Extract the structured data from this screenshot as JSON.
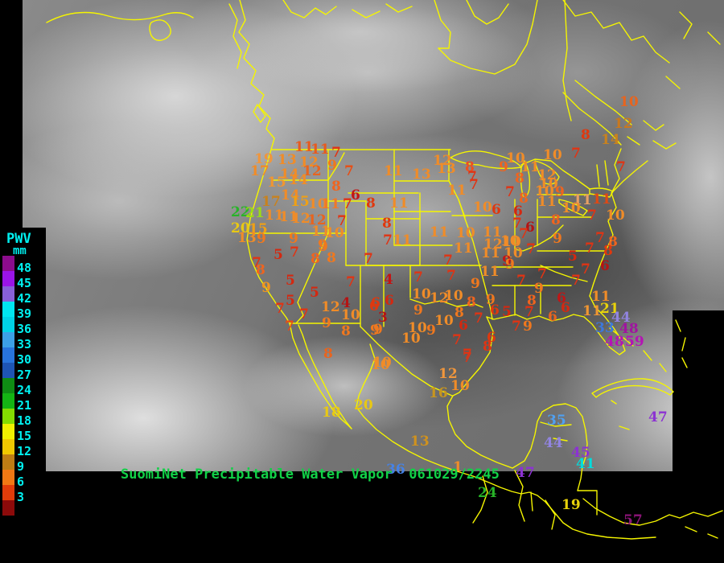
{
  "caption": {
    "text": "SuomiNet Precipitable Water Vapor  061029/2245"
  },
  "legend": {
    "title": "PWV",
    "unit": "mm",
    "label_color": "#00f0f0",
    "values": [
      "48",
      "45",
      "42",
      "39",
      "36",
      "33",
      "30",
      "27",
      "24",
      "21",
      "18",
      "15",
      "12",
      "9",
      "6",
      "3"
    ],
    "colors": [
      "#8c0c8c",
      "#9a14e6",
      "#8760d8",
      "#00e6f0",
      "#00d2e6",
      "#3ca0e6",
      "#2874dc",
      "#1e55b4",
      "#0f8c14",
      "#14b414",
      "#84dc00",
      "#f0f000",
      "#f0c800",
      "#be7d14",
      "#f07814",
      "#e03c0a",
      "#8c0a0a"
    ]
  },
  "map": {
    "outline_color": "#f5f500",
    "background": "satellite-infrared-grayscale"
  },
  "stations": [
    [
      "11",
      366,
      176,
      "#e85a1e"
    ],
    [
      "11",
      386,
      179,
      "#e85a1e"
    ],
    [
      "7",
      412,
      183,
      "#e03414"
    ],
    [
      "19",
      316,
      191,
      "#f0963c"
    ],
    [
      "13",
      345,
      192,
      "#f08c28"
    ],
    [
      "12",
      372,
      195,
      "#f08c28"
    ],
    [
      "9",
      407,
      199,
      "#f0781e"
    ],
    [
      "17",
      311,
      206,
      "#f08c28"
    ],
    [
      "12",
      376,
      206,
      "#e8641e"
    ],
    [
      "14",
      348,
      210,
      "#f08c28"
    ],
    [
      "7",
      428,
      206,
      "#e84e14"
    ],
    [
      "15",
      332,
      220,
      "#f09632"
    ],
    [
      "14",
      359,
      217,
      "#f08c28"
    ],
    [
      "8",
      412,
      225,
      "#f0641e"
    ],
    [
      "14",
      349,
      236,
      "#f08c28"
    ],
    [
      "6",
      436,
      236,
      "#c41414"
    ],
    [
      "17",
      325,
      244,
      "#c8821e"
    ],
    [
      "15",
      361,
      244,
      "#f0a014"
    ],
    [
      "10",
      383,
      247,
      "#f08c28"
    ],
    [
      "11",
      399,
      247,
      "#f0782a"
    ],
    [
      "7",
      426,
      247,
      "#e03414"
    ],
    [
      "8",
      455,
      246,
      "#e0380e"
    ],
    [
      "22",
      287,
      257,
      "#28b428"
    ],
    [
      "21",
      305,
      258,
      "#9cdc14"
    ],
    [
      "11",
      329,
      261,
      "#f08c28"
    ],
    [
      "11",
      347,
      263,
      "#f08c28"
    ],
    [
      "12",
      362,
      265,
      "#f08c28"
    ],
    [
      "12",
      382,
      267,
      "#e8641e"
    ],
    [
      "7",
      419,
      268,
      "#e03414"
    ],
    [
      "20",
      287,
      277,
      "#e8c814"
    ],
    [
      "15",
      309,
      278,
      "#f0a014"
    ],
    [
      "13",
      295,
      289,
      "#f08c28"
    ],
    [
      "9",
      319,
      290,
      "#f0781e"
    ],
    [
      "11",
      387,
      281,
      "#f08c28"
    ],
    [
      "10",
      404,
      283,
      "#f08c28"
    ],
    [
      "9",
      359,
      290,
      "#f0781e"
    ],
    [
      "9",
      395,
      298,
      "#f0781e"
    ],
    [
      "5",
      340,
      310,
      "#d42810"
    ],
    [
      "7",
      360,
      307,
      "#e03414"
    ],
    [
      "9",
      396,
      300,
      "#f0781e"
    ],
    [
      "8",
      386,
      315,
      "#f0641e"
    ],
    [
      "8",
      406,
      314,
      "#f0781e"
    ],
    [
      "7",
      452,
      315,
      "#e03414"
    ],
    [
      "7",
      313,
      320,
      "#e03414"
    ],
    [
      "8",
      318,
      329,
      "#f0641e"
    ],
    [
      "9",
      325,
      351,
      "#f0961e"
    ],
    [
      "5",
      355,
      342,
      "#d42810"
    ],
    [
      "7",
      430,
      344,
      "#e03414"
    ],
    [
      "5",
      385,
      357,
      "#d42810"
    ],
    [
      "5",
      355,
      367,
      "#d42810"
    ],
    [
      "4",
      424,
      370,
      "#b41414"
    ],
    [
      "6",
      459,
      374,
      "#e0380e"
    ],
    [
      "7",
      342,
      377,
      "#e03414"
    ],
    [
      "12",
      399,
      375,
      "#f08c28"
    ],
    [
      "7",
      372,
      384,
      "#e03414"
    ],
    [
      "10",
      424,
      385,
      "#f08c28"
    ],
    [
      "9",
      400,
      395,
      "#f0781e"
    ],
    [
      "7",
      354,
      399,
      "#e84e14"
    ],
    [
      "8",
      424,
      405,
      "#f0781e"
    ],
    [
      "9",
      460,
      404,
      "#f0781e"
    ],
    [
      "12",
      538,
      193,
      "#f08c28"
    ],
    [
      "13",
      543,
      203,
      "#f08c28"
    ],
    [
      "11",
      477,
      206,
      "#f08c28"
    ],
    [
      "13",
      512,
      210,
      "#f08c28"
    ],
    [
      "8",
      578,
      201,
      "#f0501e"
    ],
    [
      "10",
      629,
      190,
      "#f08c28"
    ],
    [
      "9",
      620,
      201,
      "#f0641e"
    ],
    [
      "11",
      647,
      201,
      "#f08c28"
    ],
    [
      "7",
      581,
      213,
      "#e03414"
    ],
    [
      "7",
      583,
      223,
      "#e03414"
    ],
    [
      "11",
      556,
      230,
      "#f08c28"
    ],
    [
      "8",
      640,
      215,
      "#f0641e"
    ],
    [
      "7",
      628,
      232,
      "#e03414"
    ],
    [
      "11",
      484,
      246,
      "#f08c28"
    ],
    [
      "10",
      588,
      251,
      "#f08c28"
    ],
    [
      "6",
      611,
      254,
      "#e0380e"
    ],
    [
      "8",
      475,
      271,
      "#e0380e"
    ],
    [
      "7",
      637,
      271,
      "#e03414"
    ],
    [
      "7",
      476,
      292,
      "#e03414"
    ],
    [
      "11",
      488,
      292,
      "#f08c28"
    ],
    [
      "11",
      534,
      282,
      "#f08c28"
    ],
    [
      "10",
      567,
      283,
      "#f08c28"
    ],
    [
      "11",
      600,
      282,
      "#f08c28"
    ],
    [
      "12",
      601,
      297,
      "#f08c28"
    ],
    [
      "10",
      622,
      293,
      "#f08c28"
    ],
    [
      "11",
      564,
      302,
      "#f08c28"
    ],
    [
      "11",
      598,
      308,
      "#f08c28"
    ],
    [
      "10",
      626,
      308,
      "#f08c28"
    ],
    [
      "7",
      551,
      317,
      "#e03414"
    ],
    [
      "9",
      624,
      318,
      "#c01616"
    ],
    [
      "10",
      770,
      120,
      "#e8641e"
    ],
    [
      "12",
      763,
      147,
      "#c8781e"
    ],
    [
      "8",
      722,
      161,
      "#e0380e"
    ],
    [
      "14",
      747,
      167,
      "#c8821e"
    ],
    [
      "7",
      710,
      184,
      "#e03414"
    ],
    [
      "10",
      675,
      186,
      "#f08c28"
    ],
    [
      "12",
      668,
      211,
      "#f08c28"
    ],
    [
      "10",
      670,
      222,
      "#f08c28"
    ],
    [
      "7",
      766,
      201,
      "#e03414"
    ],
    [
      "10",
      665,
      231,
      "#f08c28"
    ],
    [
      "9",
      690,
      232,
      "#f0641e"
    ],
    [
      "11",
      668,
      244,
      "#f08c28"
    ],
    [
      "11",
      712,
      242,
      "#e8a064"
    ],
    [
      "11",
      736,
      241,
      "#e04814"
    ],
    [
      "10",
      698,
      252,
      "#f08c28"
    ],
    [
      "7",
      730,
      261,
      "#e03414"
    ],
    [
      "10",
      753,
      261,
      "#f08c28"
    ],
    [
      "6",
      638,
      256,
      "#d42810"
    ],
    [
      "8",
      645,
      240,
      "#f0641e"
    ],
    [
      "6",
      653,
      276,
      "#b41414"
    ],
    [
      "8",
      685,
      267,
      "#f0641e"
    ],
    [
      "7",
      645,
      284,
      "#e03414"
    ],
    [
      "9",
      687,
      290,
      "#f0781e"
    ],
    [
      "7",
      740,
      289,
      "#e03414"
    ],
    [
      "8",
      756,
      294,
      "#f0641e"
    ],
    [
      "8",
      750,
      305,
      "#e0380e"
    ],
    [
      "6",
      746,
      324,
      "#b41414"
    ],
    [
      "7",
      727,
      302,
      "#e03414"
    ],
    [
      "10",
      624,
      294,
      "#f08c28"
    ],
    [
      "9",
      628,
      322,
      "#f0781e"
    ],
    [
      "7",
      654,
      303,
      "#e03414"
    ],
    [
      "5",
      706,
      312,
      "#d42810"
    ],
    [
      "7",
      722,
      328,
      "#e03414"
    ],
    [
      "7",
      668,
      334,
      "#e03414"
    ],
    [
      "7",
      642,
      342,
      "#e03414"
    ],
    [
      "9",
      664,
      352,
      "#f0781e"
    ],
    [
      "7",
      710,
      342,
      "#e03414"
    ],
    [
      "8",
      655,
      367,
      "#f0641e"
    ],
    [
      "6",
      692,
      364,
      "#c01616"
    ],
    [
      "11",
      735,
      362,
      "#f08c28"
    ],
    [
      "5",
      624,
      381,
      "#d42810"
    ],
    [
      "7",
      652,
      381,
      "#e03414"
    ],
    [
      "6",
      697,
      376,
      "#d42810"
    ],
    [
      "11",
      724,
      380,
      "#f09632"
    ],
    [
      "21",
      746,
      377,
      "#e8d20a"
    ],
    [
      "6",
      681,
      387,
      "#e8641e"
    ],
    [
      "7",
      636,
      399,
      "#e03414"
    ],
    [
      "9",
      650,
      399,
      "#f0781e"
    ],
    [
      "44",
      760,
      388,
      "#9184e0"
    ],
    [
      "33",
      740,
      401,
      "#3c78dc"
    ],
    [
      "48",
      770,
      402,
      "#a014a0"
    ],
    [
      "48",
      752,
      418,
      "#b414b4"
    ],
    [
      "59",
      777,
      418,
      "#b414b4"
    ],
    [
      "4",
      477,
      341,
      "#c41414"
    ],
    [
      "7",
      514,
      338,
      "#e03414"
    ],
    [
      "7",
      555,
      336,
      "#e03414"
    ],
    [
      "11",
      597,
      331,
      "#f08c28"
    ],
    [
      "9",
      585,
      346,
      "#f0781e"
    ],
    [
      "6",
      461,
      370,
      "#e0380e"
    ],
    [
      "6",
      478,
      367,
      "#d42810"
    ],
    [
      "10",
      512,
      359,
      "#f08c28"
    ],
    [
      "12",
      534,
      364,
      "#f08c28"
    ],
    [
      "10",
      552,
      361,
      "#f08c28"
    ],
    [
      "8",
      580,
      369,
      "#f0641e"
    ],
    [
      "9",
      604,
      366,
      "#f0781e"
    ],
    [
      "3",
      470,
      388,
      "#b41414"
    ],
    [
      "9",
      514,
      379,
      "#f0781e"
    ],
    [
      "8",
      565,
      382,
      "#f0781e"
    ],
    [
      "6",
      609,
      379,
      "#e0380e"
    ],
    [
      "10",
      540,
      392,
      "#f08c28"
    ],
    [
      "7",
      589,
      389,
      "#e03414"
    ],
    [
      "9",
      464,
      403,
      "#f0781e"
    ],
    [
      "10",
      507,
      401,
      "#f08c28"
    ],
    [
      "9",
      530,
      404,
      "#f0781e"
    ],
    [
      "6",
      570,
      398,
      "#d42810"
    ],
    [
      "10",
      499,
      414,
      "#f08c28"
    ],
    [
      "7",
      562,
      416,
      "#e03414"
    ],
    [
      "6",
      605,
      413,
      "#e0380e"
    ],
    [
      "8",
      600,
      424,
      "#e03414"
    ],
    [
      "7",
      575,
      434,
      "#e03414"
    ],
    [
      "10",
      463,
      444,
      "#f08c28"
    ],
    [
      "12",
      545,
      458,
      "#f0963c"
    ],
    [
      "10",
      560,
      473,
      "#f08c28"
    ],
    [
      "16",
      533,
      482,
      "#c8961e"
    ],
    [
      "8",
      402,
      433,
      "#e8641e"
    ],
    [
      "10",
      461,
      447,
      "#f08c28"
    ],
    [
      "20",
      440,
      497,
      "#e8c814"
    ],
    [
      "18",
      400,
      506,
      "#e8c814"
    ],
    [
      "13",
      510,
      542,
      "#d0921e"
    ],
    [
      "7",
      575,
      438,
      "#e03414"
    ],
    [
      "35",
      680,
      516,
      "#50a0f0"
    ],
    [
      "44",
      676,
      544,
      "#9184e0"
    ],
    [
      "45",
      710,
      556,
      "#8c32d2"
    ],
    [
      "41",
      716,
      570,
      "#00dcdc"
    ],
    [
      "47",
      641,
      581,
      "#8c32d2"
    ],
    [
      "36",
      480,
      577,
      "#4682e6"
    ],
    [
      "1",
      563,
      574,
      "#f08c28"
    ],
    [
      "24",
      594,
      606,
      "#28b428"
    ],
    [
      "19",
      698,
      621,
      "#e8d20a"
    ],
    [
      "47",
      806,
      512,
      "#8c32d2"
    ],
    [
      "57",
      775,
      640,
      "#8c1478"
    ]
  ]
}
